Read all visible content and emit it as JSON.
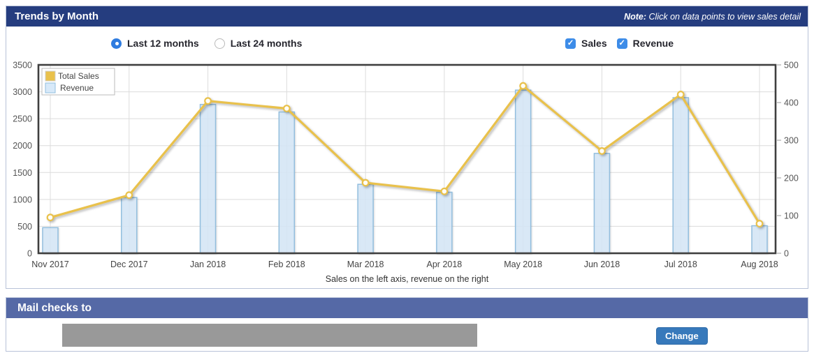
{
  "panel": {
    "title": "Trends by Month",
    "note_prefix": "Note:",
    "note_text": " Click on data points to view sales detail"
  },
  "controls": {
    "radios": [
      {
        "label": "Last 12 months",
        "selected": true
      },
      {
        "label": "Last 24 months",
        "selected": false
      }
    ],
    "checkboxes": [
      {
        "label": "Sales",
        "checked": true
      },
      {
        "label": "Revenue",
        "checked": true
      }
    ]
  },
  "chart_data": {
    "type": "line+bar",
    "categories": [
      "Nov 2017",
      "Dec 2017",
      "Jan 2018",
      "Feb 2018",
      "Mar 2018",
      "Apr 2018",
      "May 2018",
      "Jun 2018",
      "Jul 2018",
      "Aug 2018"
    ],
    "series": [
      {
        "name": "Total Sales",
        "type": "line",
        "axis": "left",
        "values": [
          665,
          1080,
          2830,
          2690,
          1310,
          1150,
          3110,
          1900,
          2950,
          550
        ]
      },
      {
        "name": "Revenue",
        "type": "bar",
        "axis": "right",
        "values": [
          68,
          148,
          395,
          375,
          183,
          162,
          433,
          265,
          413,
          73
        ]
      }
    ],
    "left_axis": {
      "min": 0,
      "max": 3500,
      "step": 500
    },
    "right_axis": {
      "min": 0,
      "max": 500,
      "step": 100
    },
    "legend": {
      "position": "top-left",
      "entries": [
        "Total Sales",
        "Revenue"
      ]
    },
    "grid": true,
    "caption": "Sales on the left axis, revenue on the right"
  },
  "mail_section": {
    "title": "Mail checks to",
    "change_button": "Change",
    "address_redacted": true
  },
  "colors": {
    "header_bg": "#253d7f",
    "subheader_bg": "#5569a6",
    "accent_blue": "#3d8ce8",
    "radio_blue": "#2f7ce0",
    "button_bg": "#3779bb",
    "redacted_gray": "#999999",
    "panel_border": "#b8c2d8",
    "line_gold": "#e9c14b",
    "marker_fill": "#fffef7",
    "bar_fill": "#d7e9f9",
    "bar_stroke": "#92bede",
    "grid_line": "#dcdcdc",
    "plot_border": "#3f3f3f",
    "tick_text": "#555555"
  }
}
